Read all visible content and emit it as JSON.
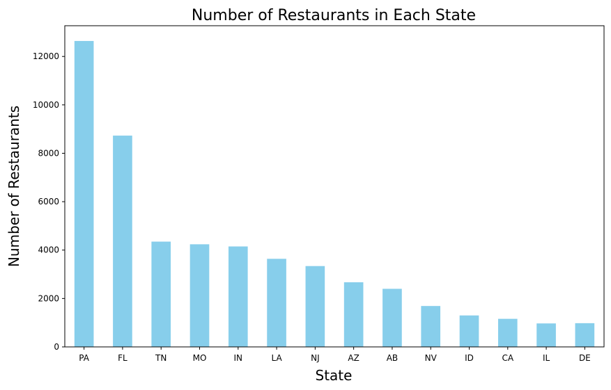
{
  "chart_data": {
    "type": "bar",
    "title": "Number of Restaurants in Each State",
    "xlabel": "State",
    "ylabel": "Number of Restaurants",
    "categories": [
      "PA",
      "FL",
      "TN",
      "MO",
      "IN",
      "LA",
      "NJ",
      "AZ",
      "AB",
      "NV",
      "ID",
      "CA",
      "IL",
      "DE"
    ],
    "values": [
      12640,
      8730,
      4350,
      4240,
      4150,
      3640,
      3340,
      2670,
      2400,
      1690,
      1300,
      1160,
      970,
      980
    ],
    "ylim": [
      0,
      13270
    ],
    "yticks": [
      0,
      2000,
      4000,
      6000,
      8000,
      10000,
      12000
    ],
    "bar_color": "#87CEEB",
    "grid": false,
    "legend": "none"
  }
}
